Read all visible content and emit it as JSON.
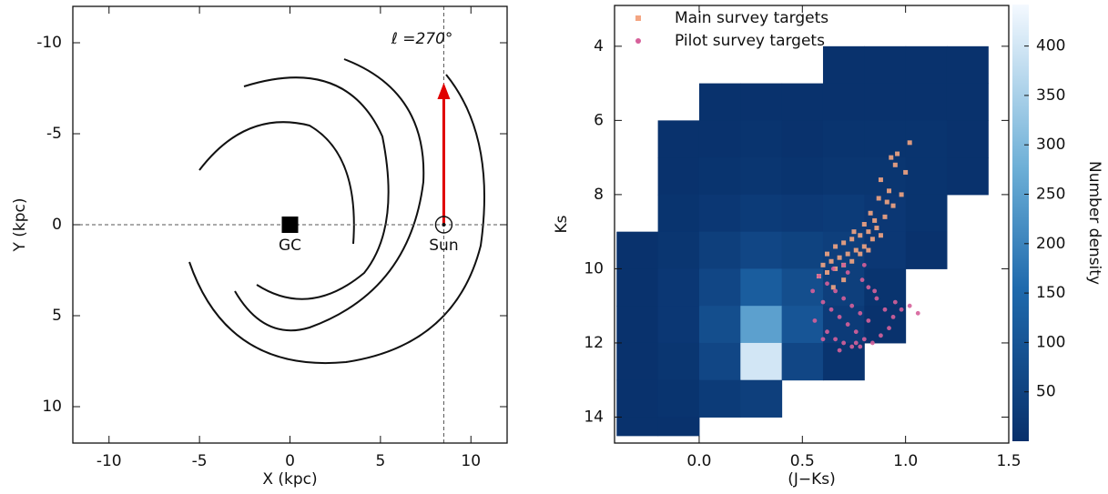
{
  "chart_data": [
    {
      "type": "schematic",
      "xlabel": "X (kpc)",
      "ylabel": "Y (kpc)",
      "xlim": [
        -12,
        12
      ],
      "ylim": [
        -12,
        12
      ],
      "y_inverted": true,
      "xticks": [
        -10,
        -5,
        0,
        5,
        10
      ],
      "yticks": [
        -10,
        -5,
        0,
        5,
        10
      ],
      "annotation": "ℓ =270°",
      "arrow_color": "#e00000",
      "markers": [
        {
          "label": "GC",
          "x": 0,
          "y": 0
        },
        {
          "label": "Sun",
          "x": 8.5,
          "y": 0
        }
      ]
    },
    {
      "type": "hist2d",
      "xlabel": "(J−Ks)",
      "ylabel": "Ks",
      "xlim": [
        -0.41,
        1.5
      ],
      "ylim": [
        2.9,
        14.7
      ],
      "y_inverted": true,
      "xticks": [
        {
          "value": 0,
          "label": "0.0"
        },
        0.5,
        {
          "value": 1,
          "label": "1.0"
        },
        1.5
      ],
      "yticks": [
        4,
        6,
        8,
        10,
        12,
        14
      ],
      "xbins": [
        -0.4,
        -0.2,
        0,
        0.2,
        0.4,
        0.6,
        0.8,
        1.0,
        1.2,
        1.4
      ],
      "ybins": [
        4,
        5,
        6,
        7,
        8,
        9,
        10,
        11,
        12,
        13,
        14,
        14.5
      ],
      "counts": [
        [
          null,
          null,
          null,
          null,
          null,
          5,
          5,
          5,
          5
        ],
        [
          null,
          null,
          5,
          5,
          5,
          5,
          5,
          5,
          5
        ],
        [
          null,
          5,
          5,
          10,
          5,
          10,
          10,
          10,
          5
        ],
        [
          null,
          5,
          10,
          15,
          10,
          15,
          15,
          10,
          5
        ],
        [
          null,
          10,
          20,
          30,
          25,
          30,
          20,
          10,
          null
        ],
        [
          5,
          15,
          40,
          60,
          50,
          40,
          20,
          5,
          null
        ],
        [
          5,
          20,
          60,
          120,
          80,
          40,
          10,
          null,
          null
        ],
        [
          5,
          20,
          80,
          250,
          100,
          30,
          5,
          null,
          null
        ],
        [
          5,
          15,
          60,
          400,
          60,
          10,
          null,
          null,
          null
        ],
        [
          5,
          10,
          30,
          40,
          null,
          null,
          null,
          null,
          null
        ],
        [
          5,
          5,
          null,
          null,
          null,
          null,
          null,
          null,
          null
        ]
      ],
      "colorbar": {
        "label": "Number density",
        "lim": [
          0,
          442
        ],
        "ticks": [
          50,
          100,
          150,
          200,
          250,
          300,
          350,
          400
        ]
      },
      "legend": "upper left",
      "series": [
        {
          "name": "Main survey targets",
          "color": "#f4a582",
          "marker": "square",
          "x": [
            0.62,
            0.66,
            0.7,
            0.74,
            0.78,
            0.82,
            0.86,
            0.6,
            0.64,
            0.68,
            0.72,
            0.76,
            0.8,
            0.84,
            0.88,
            0.58,
            0.62,
            0.66,
            0.7,
            0.74,
            0.78,
            0.82,
            0.9,
            0.94,
            0.98,
            0.85,
            0.92,
            1.0,
            0.88,
            0.96,
            0.8,
            0.75,
            0.83,
            0.91,
            0.7,
            0.65,
            0.95,
            1.02,
            0.87,
            0.93
          ],
          "y": [
            9.6,
            9.4,
            9.3,
            9.2,
            9.1,
            9.0,
            8.9,
            9.9,
            9.8,
            9.7,
            9.6,
            9.5,
            9.4,
            9.2,
            9.1,
            10.2,
            10.1,
            10.0,
            9.9,
            9.8,
            9.6,
            9.5,
            8.6,
            8.3,
            8.0,
            8.7,
            7.9,
            7.4,
            7.6,
            6.9,
            8.8,
            9.0,
            8.5,
            8.2,
            10.3,
            10.5,
            7.2,
            6.6,
            8.1,
            7.0
          ]
        },
        {
          "name": "Pilot survey targets",
          "color": "#d6609a",
          "marker": "circle",
          "x": [
            0.58,
            0.62,
            0.66,
            0.7,
            0.74,
            0.78,
            0.82,
            0.6,
            0.64,
            0.68,
            0.72,
            0.76,
            0.8,
            0.84,
            0.88,
            0.56,
            0.62,
            0.66,
            0.7,
            0.74,
            0.78,
            0.82,
            0.86,
            0.9,
            0.94,
            0.98,
            1.02,
            1.06,
            0.65,
            0.72,
            0.79,
            0.85,
            0.6,
            0.68,
            0.76,
            0.92,
            0.55,
            0.7,
            0.8,
            0.95
          ],
          "y": [
            10.2,
            10.4,
            10.6,
            10.8,
            11.0,
            11.2,
            11.4,
            10.9,
            11.1,
            11.3,
            11.5,
            11.7,
            11.9,
            12.0,
            11.8,
            11.4,
            11.7,
            11.9,
            12.0,
            12.1,
            12.1,
            10.5,
            10.8,
            11.1,
            11.3,
            11.1,
            11.0,
            11.2,
            10.0,
            10.1,
            10.3,
            10.6,
            11.9,
            12.2,
            12.0,
            11.6,
            10.6,
            9.9,
            9.9,
            10.9
          ]
        }
      ]
    }
  ]
}
